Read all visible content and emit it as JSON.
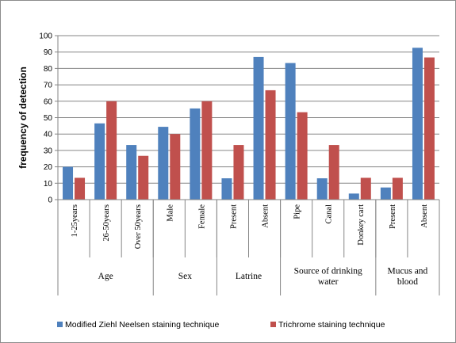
{
  "chart_data": {
    "type": "bar",
    "ylabel": "frequency of detection",
    "xlabel": "",
    "ylim": [
      0,
      100
    ],
    "yticks": [
      "0",
      "10",
      "20",
      "30",
      "40",
      "50",
      "60",
      "70",
      "80",
      "90",
      "100"
    ],
    "grid": true,
    "legend_position": "bottom",
    "categories": [
      "1-25years",
      "26-50years",
      "Over 50years",
      "Male",
      "Female",
      "Present",
      "Absent",
      "Pipe",
      "Canal",
      "Donkey cart",
      "Present",
      "Absent"
    ],
    "groups": [
      {
        "label": "Age",
        "count": 3
      },
      {
        "label": "Sex",
        "count": 2
      },
      {
        "label": "Latrine",
        "count": 2
      },
      {
        "label": "Source of drinking water",
        "count": 3
      },
      {
        "label": "Mucus and blood",
        "count": 2
      }
    ],
    "series": [
      {
        "name": "Modified Ziehl Neelsen staining technique",
        "color": "#4f81bd",
        "values": [
          20,
          46.5,
          33.3,
          44.4,
          55.6,
          13,
          87,
          83.3,
          13,
          3.7,
          7.4,
          92.6
        ]
      },
      {
        "name": "Trichrome staining technique",
        "color": "#c0504d",
        "values": [
          13.3,
          60,
          26.7,
          40,
          60,
          33.3,
          66.7,
          53.3,
          33.3,
          13.3,
          13.3,
          86.7
        ]
      }
    ]
  }
}
